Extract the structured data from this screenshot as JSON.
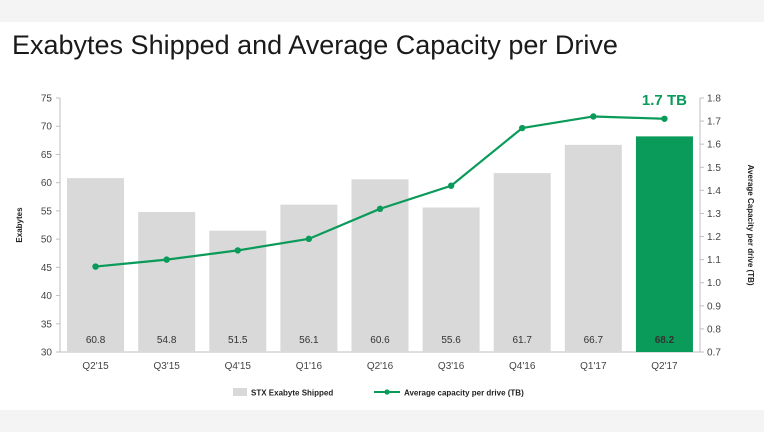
{
  "page": {
    "title": "Exabytes Shipped and Average Capacity per Drive"
  },
  "chart_data": {
    "type": "bar",
    "title": "Exabytes Shipped and Average Capacity per Drive",
    "categories": [
      "Q2'15",
      "Q3'15",
      "Q4'15",
      "Q1'16",
      "Q2'16",
      "Q3'16",
      "Q4'16",
      "Q1'17",
      "Q2'17"
    ],
    "ylabel": "Exabytes",
    "y2label": "Average Capacity per drive (TB)",
    "ylim": [
      30,
      75
    ],
    "y2lim": [
      0.7,
      1.8
    ],
    "yticks": [
      75,
      70,
      65,
      60,
      55,
      50,
      45,
      40,
      35,
      30
    ],
    "y2ticks": [
      "1.8",
      "1.7",
      "1.6",
      "1.5",
      "1.4",
      "1.3",
      "1.2",
      "1.1",
      "1.0",
      "0.9",
      "0.8",
      "0.7"
    ],
    "series": [
      {
        "name": "STX Exabyte Shipped",
        "type": "bar",
        "axis": "left",
        "values": [
          60.8,
          54.8,
          51.5,
          56.1,
          60.6,
          55.6,
          61.7,
          66.7,
          68.2
        ],
        "labels": [
          "60.8",
          "54.8",
          "51.5",
          "56.1",
          "60.6",
          "55.6",
          "61.7",
          "66.7",
          "68.2"
        ],
        "color": "#d9d9d9",
        "highlight_color": "#0a9a59"
      },
      {
        "name": "Average capacity per drive (TB)",
        "type": "line",
        "axis": "right",
        "values": [
          1.07,
          1.1,
          1.14,
          1.19,
          1.32,
          1.42,
          1.67,
          1.72,
          1.71
        ],
        "color": "#0a9a59"
      }
    ],
    "annotation": "1.7 TB",
    "legend_position": "bottom"
  }
}
